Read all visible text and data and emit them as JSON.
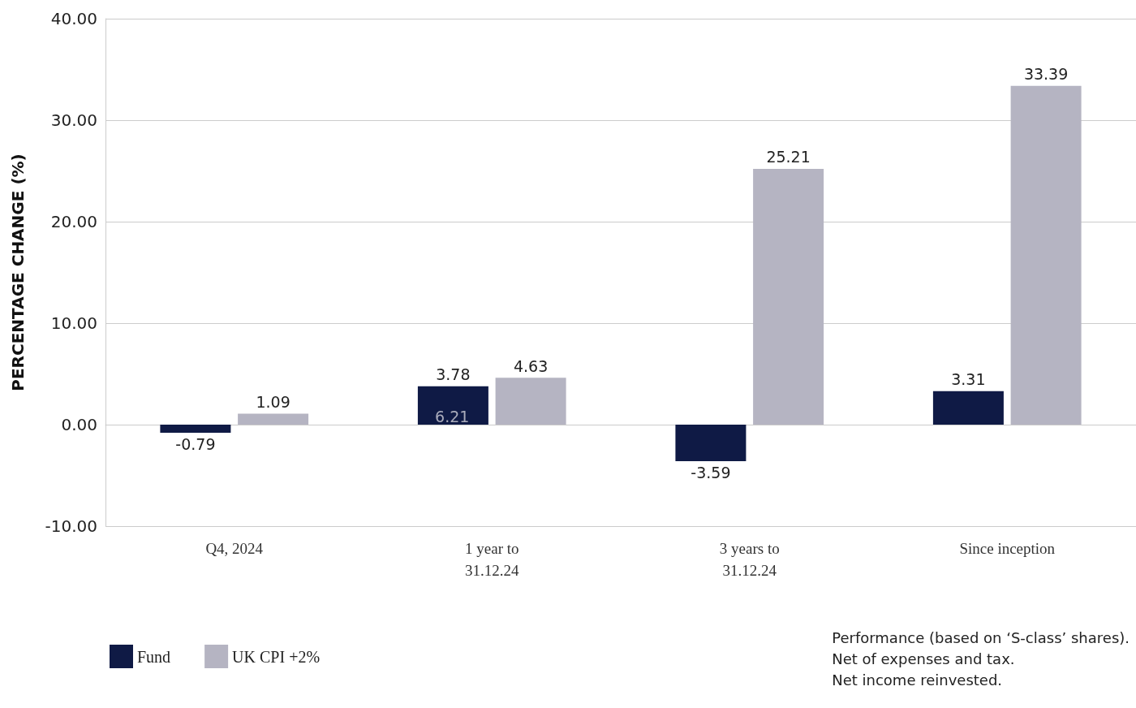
{
  "chart_data": {
    "type": "bar",
    "ylabel": "PERCENTAGE CHANGE (%)",
    "categories": [
      "Q4, 2024",
      "1 year to\n31.12.24",
      "3 years to\n31.12.24",
      "Since inception"
    ],
    "series": [
      {
        "name": "Fund",
        "color": "#0f1a45",
        "values": [
          -0.79,
          3.78,
          -3.59,
          3.31
        ]
      },
      {
        "name": "UK CPI +2%",
        "color": "#b5b4c2",
        "values": [
          1.09,
          4.63,
          25.21,
          33.39
        ]
      }
    ],
    "ylim": [
      -10,
      40
    ],
    "yticks": [
      {
        "value": -10,
        "label": "-10.00"
      },
      {
        "value": 0,
        "label": "0.00"
      },
      {
        "value": 10,
        "label": "10.00"
      },
      {
        "value": 20,
        "label": "20.00"
      },
      {
        "value": 30,
        "label": "30.00"
      },
      {
        "value": 40,
        "label": "40.00"
      }
    ],
    "grid": "y",
    "legend": "bottom left",
    "data_labels": true,
    "annotations": [
      {
        "text": "6.21",
        "x": "1 year to\n31.12.24",
        "y": 0.8
      },
      "Performance (based on ‘S-class’ shares).\nNet of expenses and tax.\nNet income reinvested."
    ]
  }
}
